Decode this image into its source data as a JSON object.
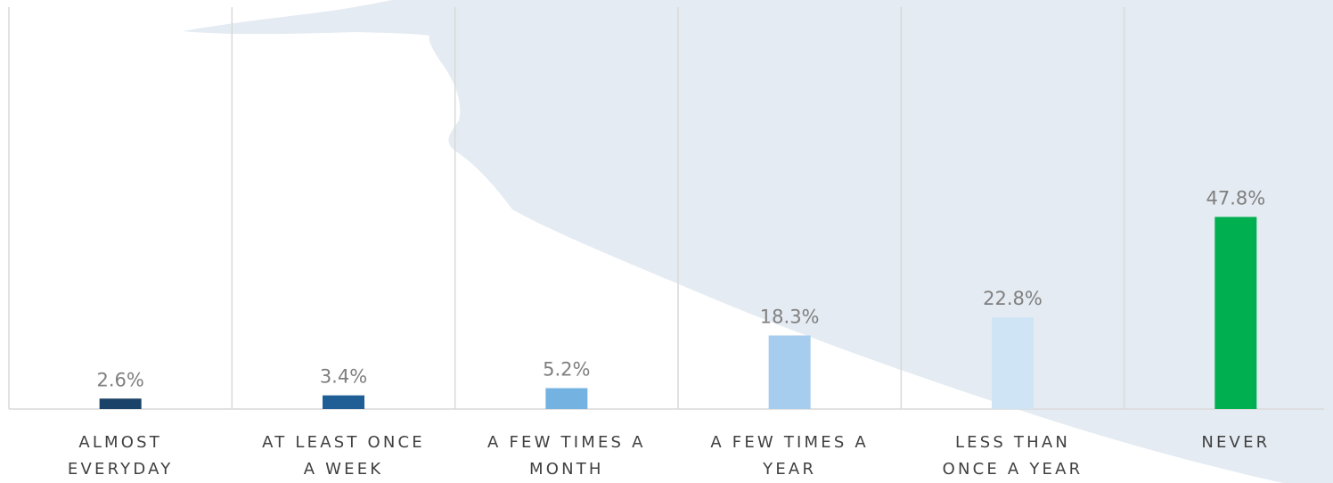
{
  "chart_data": {
    "type": "bar",
    "categories": [
      "ALMOST\nEVERYDAY",
      "AT LEAST ONCE\nA WEEK",
      "A FEW TIMES A\nMONTH",
      "A FEW TIMES A\nYEAR",
      "LESS THAN\nONCE A YEAR",
      "NEVER"
    ],
    "values": [
      2.6,
      3.4,
      5.2,
      18.3,
      22.8,
      47.8
    ],
    "value_labels": [
      "2.6%",
      "3.4%",
      "5.2%",
      "18.3%",
      "22.8%",
      "47.8%"
    ],
    "colors": [
      "#1b4268",
      "#1f5f96",
      "#74b2e2",
      "#a7cdee",
      "#cfe4f5",
      "#00b050"
    ],
    "ylim": [
      0,
      100
    ]
  }
}
